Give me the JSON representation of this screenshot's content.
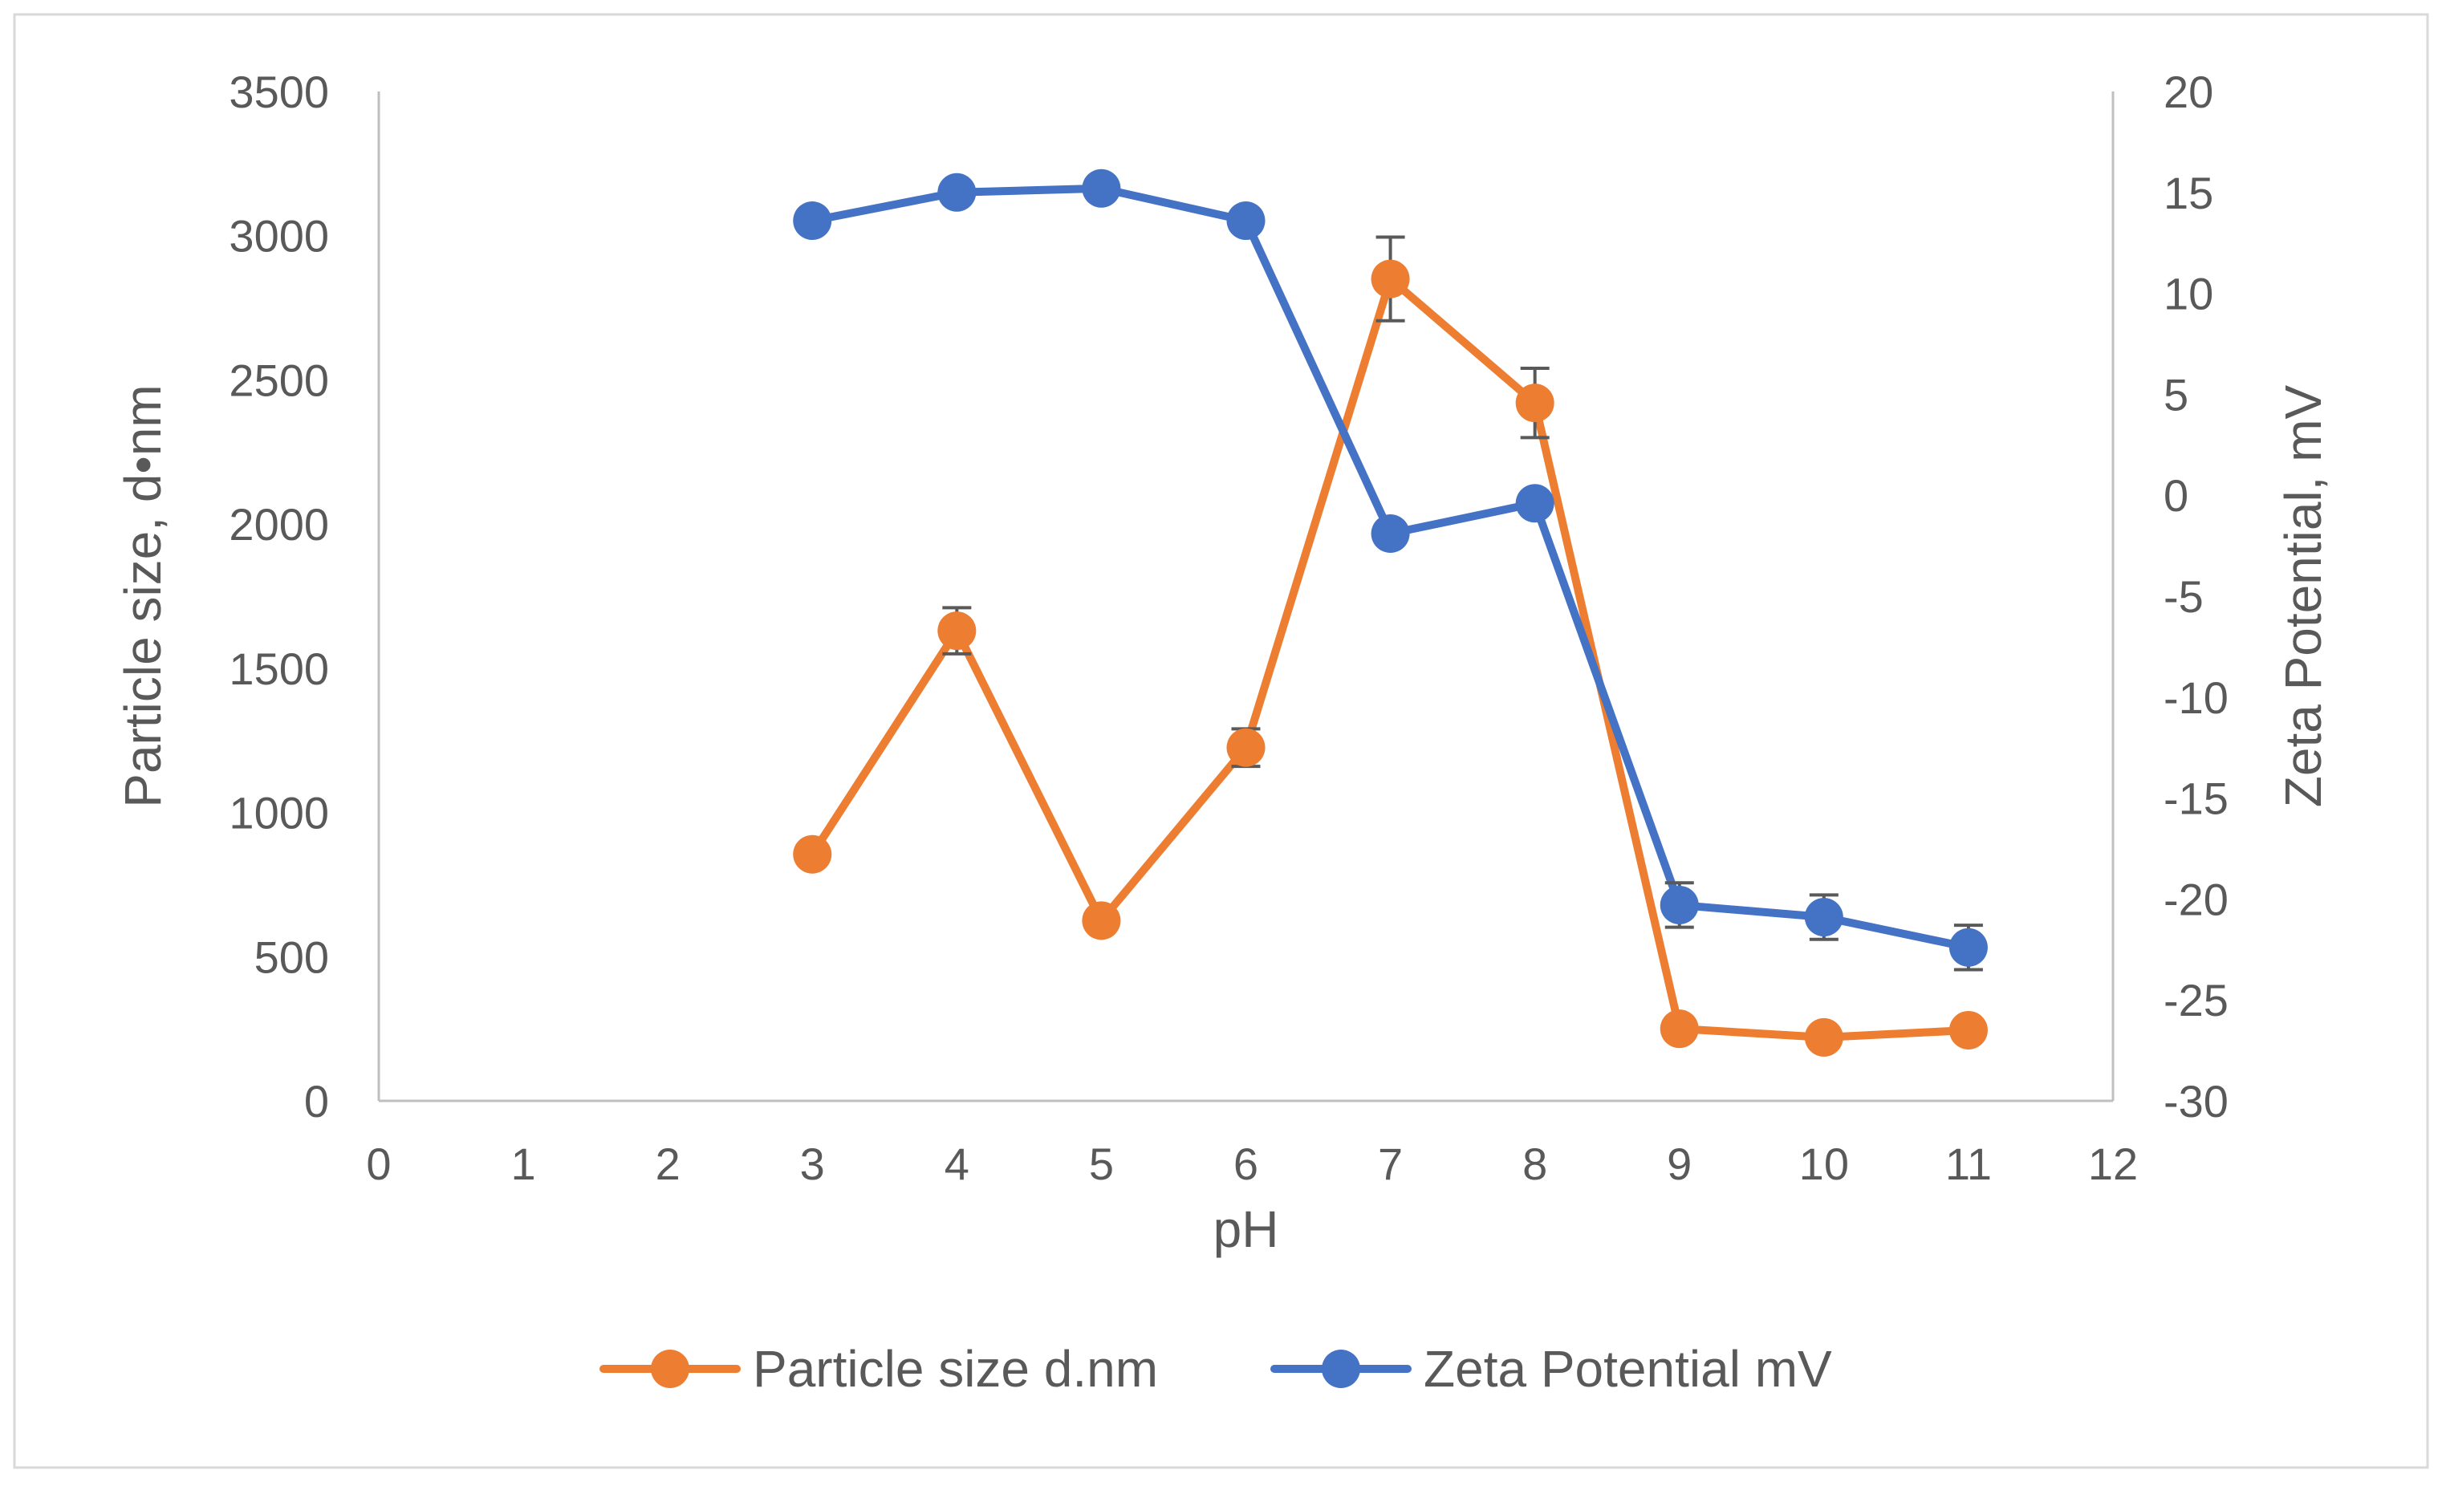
{
  "chart_data": {
    "type": "line",
    "title": "",
    "xlabel": "pH",
    "ylabel": "Particle size, d•nm",
    "y2label": "Zeta Potential, mV",
    "xlim": [
      0,
      12
    ],
    "ylim": [
      0,
      3500
    ],
    "y2lim": [
      -30,
      20
    ],
    "x_ticks": [
      "0",
      "1",
      "2",
      "3",
      "4",
      "5",
      "6",
      "7",
      "8",
      "9",
      "10",
      "11",
      "12"
    ],
    "y_ticks": [
      "0",
      "500",
      "1000",
      "1500",
      "2000",
      "2500",
      "3000",
      "3500"
    ],
    "y2_ticks": [
      "-30",
      "-25",
      "-20",
      "-15",
      "-10",
      "-5",
      "0",
      "5",
      "10",
      "15",
      "20"
    ],
    "grid": false,
    "legend_position": "bottom",
    "series": [
      {
        "name": "Particle size d.nm",
        "axis": "left",
        "color": "#ED7D31",
        "x": [
          3,
          4,
          5,
          6,
          7,
          8,
          9,
          10,
          11
        ],
        "values": [
          855,
          1630,
          625,
          1225,
          2850,
          2420,
          250,
          220,
          245
        ],
        "errors": [
          25,
          80,
          20,
          65,
          145,
          120,
          15,
          15,
          15
        ]
      },
      {
        "name": "Zeta Potential mV",
        "axis": "right",
        "color": "#4472C4",
        "x": [
          3,
          4,
          5,
          6,
          7,
          8,
          9,
          10,
          11
        ],
        "values": [
          13.6,
          15.0,
          15.2,
          13.6,
          -1.9,
          -0.4,
          -20.3,
          -20.9,
          -22.4
        ],
        "errors": [
          0.5,
          0.5,
          0.5,
          0.5,
          0.3,
          0.3,
          1.1,
          1.1,
          1.1
        ]
      }
    ]
  }
}
